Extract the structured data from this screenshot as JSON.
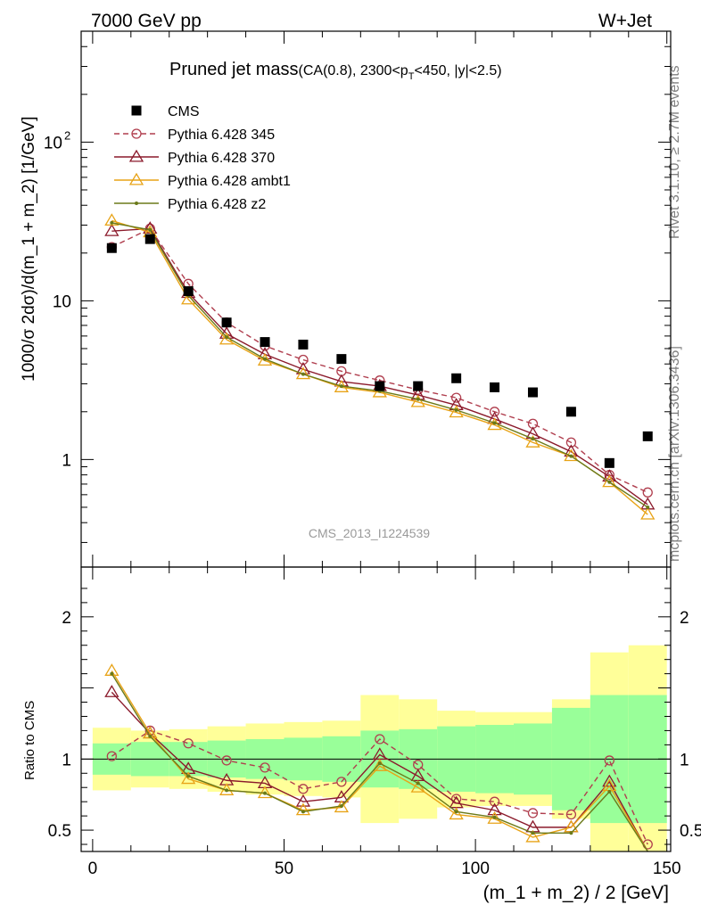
{
  "header": {
    "left": "7000 GeV pp",
    "right": "W+Jet"
  },
  "side_notes": {
    "rivet": "Rivet 3.1.10, ≥ 2.7M events",
    "mcplots": "mcplots.cern.ch [arXiv:1306.3436]"
  },
  "chart_data": {
    "type": "line",
    "title_main": "Pruned jet mass",
    "title_sub": "(CA(0.8), 2300<p",
    "title_sub_pt": "T",
    "title_sub_end": "<450, |y|<2.5)",
    "ylabel": "1000/σ 2dσ)/d(m_1 + m_2) [1/GeV]",
    "ratio_ylabel": "Ratio to CMS",
    "xlabel": "(m_1 + m_2) / 2 [GeV]",
    "watermark": "CMS_2013_I1224539",
    "xlim": [
      -3,
      151
    ],
    "ylim": [
      0.21,
      500
    ],
    "yscale": "log",
    "ratio_ylim": [
      0.35,
      2.35
    ],
    "x_ticks": [
      "0",
      "50",
      "100",
      "150"
    ],
    "y_ticks": [
      "1",
      "10",
      "10"
    ],
    "y_tick_exp": "2",
    "ratio_ticks": [
      "0.5",
      "1",
      "2"
    ],
    "x": [
      5,
      15,
      25,
      35,
      45,
      55,
      65,
      75,
      85,
      95,
      105,
      115,
      125,
      135,
      145
    ],
    "data": {
      "name": "CMS",
      "values": [
        21.5,
        24.5,
        11.5,
        7.3,
        5.5,
        5.3,
        4.3,
        2.9,
        2.9,
        3.25,
        2.85,
        2.65,
        2.0,
        0.95,
        1.4
      ]
    },
    "uncertainty_band": {
      "stat_rel": [
        0.11,
        0.12,
        0.12,
        0.13,
        0.14,
        0.15,
        0.16,
        0.2,
        0.21,
        0.23,
        0.24,
        0.25,
        0.36,
        0.45,
        0.45
      ],
      "total_rel": [
        0.22,
        0.2,
        0.21,
        0.23,
        0.25,
        0.26,
        0.27,
        0.45,
        0.42,
        0.34,
        0.33,
        0.33,
        0.42,
        0.75,
        0.8
      ]
    },
    "series": [
      {
        "name": "Pythia 6.428 345",
        "color": "#b03e4e",
        "dash": true,
        "marker": "circle",
        "values": [
          21.8,
          28.5,
          12.8,
          7.3,
          5.2,
          4.25,
          3.6,
          3.15,
          2.75,
          2.45,
          2.0,
          1.68,
          1.28,
          0.8,
          0.62
        ],
        "ratio": [
          1.02,
          1.2,
          1.11,
          0.99,
          0.94,
          0.79,
          0.84,
          1.14,
          0.96,
          0.72,
          0.7,
          0.62,
          0.61,
          0.99,
          0.4
        ]
      },
      {
        "name": "Pythia 6.428 370",
        "color": "#8b1a2b",
        "dash": false,
        "marker": "triangle",
        "values": [
          27.5,
          28.5,
          11.2,
          6.2,
          4.6,
          3.7,
          3.1,
          2.9,
          2.55,
          2.2,
          1.8,
          1.45,
          1.12,
          0.78,
          0.52
        ],
        "ratio": [
          1.47,
          1.18,
          0.93,
          0.85,
          0.83,
          0.7,
          0.73,
          1.03,
          0.88,
          0.69,
          0.64,
          0.52,
          0.52,
          0.84,
          0.3
        ]
      },
      {
        "name": "Pythia 6.428 ambt1",
        "color": "#e8a317",
        "dash": false,
        "marker": "triangle",
        "values": [
          32,
          27,
          10.2,
          5.7,
          4.2,
          3.45,
          2.85,
          2.65,
          2.3,
          1.98,
          1.65,
          1.28,
          1.05,
          0.72,
          0.45
        ],
        "ratio": [
          1.62,
          1.18,
          0.86,
          0.78,
          0.76,
          0.64,
          0.66,
          0.95,
          0.8,
          0.61,
          0.58,
          0.45,
          0.52,
          0.81,
          0.3
        ]
      },
      {
        "name": "Pythia 6.428 z2",
        "color": "#6b7a1a",
        "dash": false,
        "marker": "dot",
        "values": [
          31,
          28,
          10.8,
          5.9,
          4.3,
          3.45,
          2.9,
          2.7,
          2.4,
          2.05,
          1.7,
          1.35,
          1.05,
          0.72,
          0.5
        ],
        "ratio": [
          1.6,
          1.16,
          0.88,
          0.78,
          0.76,
          0.63,
          0.67,
          0.97,
          0.83,
          0.63,
          0.59,
          0.48,
          0.48,
          0.77,
          0.3
        ]
      }
    ],
    "legend_position": "top-left"
  }
}
